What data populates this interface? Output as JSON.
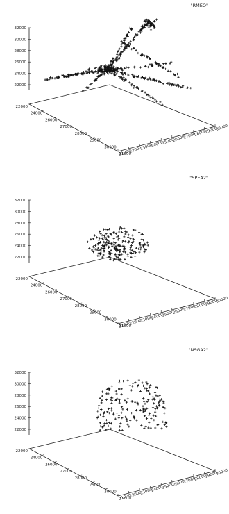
{
  "chart_data": [
    {
      "type": "scatter",
      "title": "",
      "legend": "\"RMEO\"",
      "series": [
        {
          "name": "\"RMEO\"",
          "shape": "cluster-fan",
          "color": "#111111"
        }
      ],
      "z_ticks": [
        "22000",
        "24000",
        "26000",
        "28000",
        "30000",
        "32000"
      ],
      "x_ticks": [
        "22000",
        "24000",
        "26000",
        "27000",
        "28000",
        "29000",
        "30000",
        "31000"
      ],
      "y_ticks": [
        "21000",
        "22000",
        "23000",
        "24000",
        "25000",
        "26000",
        "27000",
        "28000",
        "29000",
        "30000"
      ],
      "zlim": [
        22000,
        32000
      ],
      "grid": false,
      "legend_position": "top-right"
    },
    {
      "type": "scatter",
      "title": "",
      "legend": "\"SPEA2\"",
      "series": [
        {
          "name": "\"SPEA2\"",
          "shape": "compact-ellipse",
          "color": "#111111"
        }
      ],
      "z_ticks": [
        "22000",
        "24000",
        "26000",
        "28000",
        "30000",
        "32000"
      ],
      "x_ticks": [
        "22000",
        "24000",
        "26000",
        "27000",
        "28000",
        "29000",
        "30000",
        "31000"
      ],
      "y_ticks": [
        "21000",
        "22000",
        "23000",
        "24000",
        "25000",
        "26000",
        "27000",
        "28000",
        "29000",
        "30000"
      ],
      "zlim": [
        22000,
        32000
      ],
      "grid": false,
      "legend_position": "top-right"
    },
    {
      "type": "scatter",
      "title": "",
      "legend": "\"NSGA2\"",
      "series": [
        {
          "name": "\"NSGA2\"",
          "shape": "dome",
          "color": "#111111"
        }
      ],
      "z_ticks": [
        "22000",
        "24000",
        "26000",
        "28000",
        "30000",
        "32000"
      ],
      "x_ticks": [
        "22000",
        "24000",
        "26000",
        "27000",
        "28000",
        "29000",
        "30000",
        "31000"
      ],
      "y_ticks": [
        "21000",
        "22000",
        "23000",
        "24000",
        "25000",
        "26000",
        "27000",
        "28000",
        "29000",
        "30000"
      ],
      "zlim": [
        22000,
        32000
      ],
      "grid": false,
      "legend_position": "top-right"
    }
  ]
}
